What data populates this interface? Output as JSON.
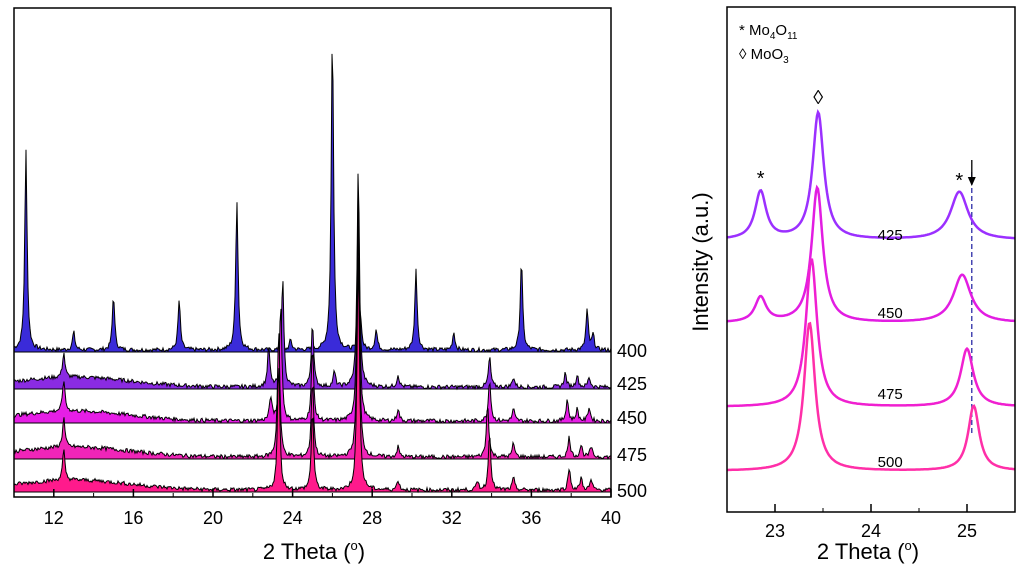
{
  "chart_data": [
    {
      "type": "area",
      "title": "",
      "xlabel_main": "2 Theta (",
      "xlabel_sup": "o",
      "xlabel_close": ")",
      "ylabel": "",
      "xlim": [
        10,
        40
      ],
      "xticks": [
        12,
        16,
        20,
        24,
        28,
        32,
        36,
        40
      ],
      "tick_labels": [
        "12",
        "16",
        "20",
        "24",
        "28",
        "32",
        "36",
        "40"
      ],
      "stacked": true,
      "series": [
        {
          "name": "400",
          "label": "400",
          "color": "#3a2bd9",
          "peaks": [
            [
              10.6,
              200
            ],
            [
              13.0,
              18
            ],
            [
              15.0,
              55
            ],
            [
              18.3,
              50
            ],
            [
              21.2,
              150
            ],
            [
              23.9,
              10
            ],
            [
              26.0,
              320
            ],
            [
              27.4,
              40
            ],
            [
              28.2,
              20
            ],
            [
              30.2,
              80
            ],
            [
              32.1,
              18
            ],
            [
              35.5,
              90
            ],
            [
              38.8,
              40
            ],
            [
              39.1,
              15
            ]
          ]
        },
        {
          "name": "425",
          "label": "425",
          "color": "#8a2be2",
          "peaks": [
            [
              12.5,
              25
            ],
            [
              22.8,
              40
            ],
            [
              23.5,
              110
            ],
            [
              25.0,
              65
            ],
            [
              26.1,
              15
            ],
            [
              27.3,
              220
            ],
            [
              29.3,
              12
            ],
            [
              33.9,
              30
            ],
            [
              35.1,
              10
            ],
            [
              37.7,
              14
            ],
            [
              38.3,
              12
            ],
            [
              38.9,
              10
            ]
          ]
        },
        {
          "name": "450",
          "label": "450",
          "color": "#e61ee6",
          "peaks": [
            [
              12.5,
              32
            ],
            [
              22.9,
              24
            ],
            [
              23.4,
              120
            ],
            [
              25.0,
              72
            ],
            [
              27.3,
              235
            ],
            [
              29.3,
              12
            ],
            [
              33.9,
              42
            ],
            [
              35.1,
              12
            ],
            [
              37.8,
              22
            ],
            [
              38.3,
              12
            ],
            [
              38.9,
              14
            ]
          ]
        },
        {
          "name": "475",
          "label": "475",
          "color": "#f025b8",
          "peaks": [
            [
              12.5,
              30
            ],
            [
              23.3,
              130
            ],
            [
              25.0,
              78
            ],
            [
              27.3,
              240
            ],
            [
              29.3,
              10
            ],
            [
              33.8,
              54
            ],
            [
              35.1,
              14
            ],
            [
              37.9,
              20
            ],
            [
              38.5,
              12
            ],
            [
              39.0,
              10
            ]
          ]
        },
        {
          "name": "500",
          "label": "500",
          "color": "#ff1a8c",
          "peaks": [
            [
              12.5,
              30
            ],
            [
              23.3,
              128
            ],
            [
              25.0,
              80
            ],
            [
              27.3,
              240
            ],
            [
              29.3,
              10
            ],
            [
              33.3,
              8
            ],
            [
              33.9,
              58
            ],
            [
              35.1,
              12
            ],
            [
              37.9,
              22
            ],
            [
              38.5,
              12
            ],
            [
              39.0,
              10
            ]
          ]
        }
      ]
    },
    {
      "type": "line",
      "title": "",
      "xlabel_main": "2 Theta (",
      "xlabel_sup": "o",
      "xlabel_close": ")",
      "ylabel": "Intensity (a.u.)",
      "xlim": [
        22.5,
        25.5
      ],
      "xticks": [
        23,
        24,
        25
      ],
      "tick_labels": [
        "23",
        "24",
        "25"
      ],
      "minor_xticks": [
        22.5,
        23.5,
        24.5,
        25.5
      ],
      "legend": [
        {
          "symbol": "*",
          "base": "Mo",
          "sub1": "4",
          "mid": "O",
          "sub2": "11"
        },
        {
          "symbol": "◊",
          "base": "Mo",
          "sub1": "",
          "mid": "O",
          "sub2": "3"
        }
      ],
      "annotations": [
        {
          "text": "◊",
          "x": 23.45
        },
        {
          "text": "*",
          "x": 22.85
        },
        {
          "text": "*",
          "x": 24.92
        }
      ],
      "reference_line_x": 25.05,
      "series": [
        {
          "name": "425",
          "label": "425",
          "label_x": 24.2,
          "color": "#9b30ff",
          "baseline": 0,
          "peaks": [
            [
              22.85,
              48,
              0.07
            ],
            [
              23.45,
              127,
              0.07
            ],
            [
              24.92,
              48,
              0.11
            ]
          ]
        },
        {
          "name": "450",
          "label": "450",
          "label_x": 24.2,
          "color": "#e21de2",
          "baseline": 0,
          "peaks": [
            [
              22.85,
              25,
              0.07
            ],
            [
              23.44,
              135,
              0.07
            ],
            [
              24.95,
              48,
              0.11
            ]
          ]
        },
        {
          "name": "475",
          "label": "475",
          "label_x": 24.2,
          "color": "#f020d0",
          "baseline": 0,
          "peaks": [
            [
              23.38,
              148,
              0.07
            ],
            [
              25.0,
              58,
              0.08
            ]
          ]
        },
        {
          "name": "500",
          "label": "500",
          "label_x": 24.2,
          "color": "#ff2fa8",
          "baseline": 0,
          "peaks": [
            [
              23.36,
              148,
              0.07
            ],
            [
              25.07,
              65,
              0.07
            ]
          ]
        }
      ]
    }
  ]
}
